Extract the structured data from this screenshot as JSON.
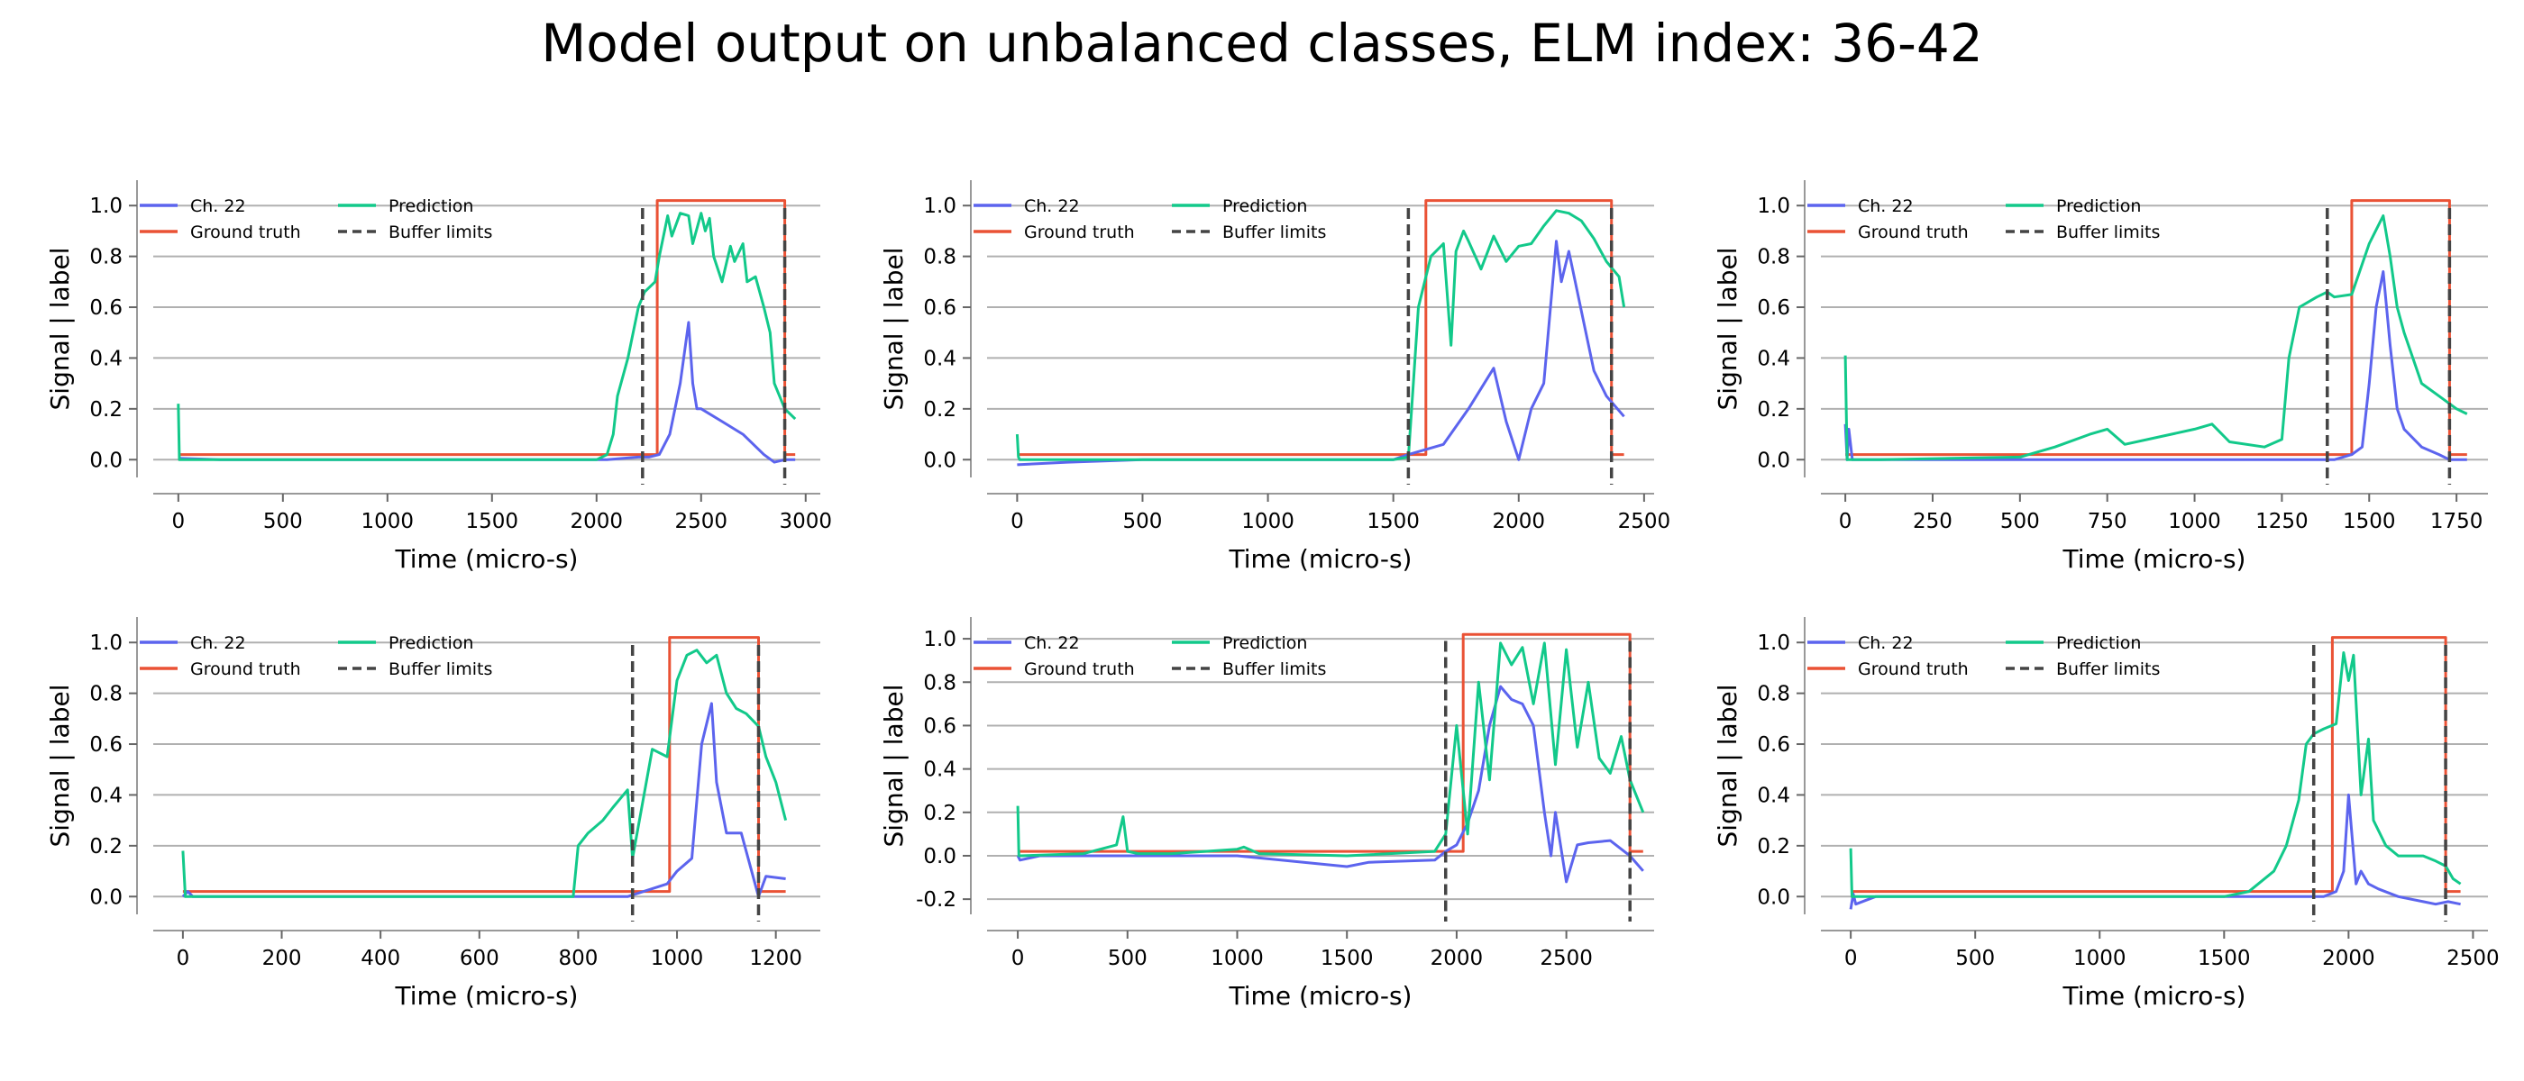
{
  "title": "Model output on unbalanced classes, ELM index: 36-42",
  "colors": {
    "channel": "#5c64ee",
    "ground_truth": "#ea5235",
    "prediction": "#12c98a",
    "buffer": "#444444",
    "grid": "#b0b0b0"
  },
  "legend": [
    "Ch. 22",
    "Ground truth",
    "Prediction",
    "Buffer limits"
  ],
  "chart_data": [
    {
      "type": "line",
      "xlabel": "Time (micro-s)",
      "ylabel": "Signal | label",
      "xlim": [
        -120,
        3070
      ],
      "ylim": [
        -0.07,
        1.1
      ],
      "xticks": [
        0,
        500,
        1000,
        1500,
        2000,
        2500,
        3000
      ],
      "yticks": [
        0.0,
        0.2,
        0.4,
        0.6,
        0.8,
        1.0
      ],
      "buffer_limits": [
        2220,
        2900
      ],
      "series": [
        {
          "name": "Ch. 22",
          "x": [
            0,
            200,
            600,
            1000,
            1400,
            1800,
            2050,
            2200,
            2250,
            2300,
            2350,
            2400,
            2440,
            2460,
            2480,
            2500,
            2600,
            2700,
            2800,
            2850,
            2900,
            2950
          ],
          "y": [
            0.005,
            0.0,
            0.0,
            0.0,
            0.0,
            0.0,
            0.0,
            0.01,
            0.01,
            0.02,
            0.1,
            0.3,
            0.54,
            0.3,
            0.2,
            0.2,
            0.15,
            0.1,
            0.02,
            -0.01,
            0.0,
            0.0
          ]
        },
        {
          "name": "Ground truth",
          "x": [
            0,
            2290,
            2290,
            2900,
            2900,
            2950
          ],
          "y": [
            0.02,
            0.02,
            1.02,
            1.02,
            0.02,
            0.02
          ]
        },
        {
          "name": "Prediction",
          "x": [
            0,
            5,
            10,
            500,
            1000,
            1500,
            2000,
            2050,
            2080,
            2100,
            2150,
            2200,
            2230,
            2280,
            2300,
            2340,
            2360,
            2400,
            2440,
            2460,
            2500,
            2520,
            2540,
            2560,
            2600,
            2640,
            2660,
            2700,
            2720,
            2760,
            2800,
            2830,
            2850,
            2900,
            2950
          ],
          "y": [
            0.22,
            0.0,
            0.0,
            0.0,
            0.0,
            0.0,
            0.0,
            0.02,
            0.1,
            0.25,
            0.4,
            0.6,
            0.66,
            0.7,
            0.8,
            0.96,
            0.88,
            0.97,
            0.96,
            0.85,
            0.97,
            0.9,
            0.95,
            0.8,
            0.7,
            0.84,
            0.78,
            0.85,
            0.7,
            0.72,
            0.6,
            0.5,
            0.3,
            0.2,
            0.16
          ]
        }
      ]
    },
    {
      "type": "line",
      "xlabel": "Time (micro-s)",
      "ylabel": "Signal | label",
      "xlim": [
        -120,
        2540
      ],
      "ylim": [
        -0.07,
        1.1
      ],
      "xticks": [
        0,
        500,
        1000,
        1500,
        2000,
        2500
      ],
      "yticks": [
        0.0,
        0.2,
        0.4,
        0.6,
        0.8,
        1.0
      ],
      "buffer_limits": [
        1560,
        2370
      ],
      "series": [
        {
          "name": "Ch. 22",
          "x": [
            0,
            200,
            500,
            1000,
            1500,
            1560,
            1700,
            1800,
            1900,
            1950,
            2000,
            2050,
            2100,
            2150,
            2170,
            2200,
            2300,
            2350,
            2420
          ],
          "y": [
            -0.02,
            -0.01,
            0.0,
            0.0,
            0.0,
            0.02,
            0.06,
            0.2,
            0.36,
            0.15,
            0.0,
            0.2,
            0.3,
            0.86,
            0.7,
            0.82,
            0.35,
            0.25,
            0.17
          ]
        },
        {
          "name": "Ground truth",
          "x": [
            0,
            1630,
            1630,
            2370,
            2370,
            2420
          ],
          "y": [
            0.02,
            0.02,
            1.02,
            1.02,
            0.02,
            0.02
          ]
        },
        {
          "name": "Prediction",
          "x": [
            0,
            5,
            10,
            500,
            1000,
            1500,
            1560,
            1580,
            1600,
            1650,
            1700,
            1730,
            1750,
            1780,
            1800,
            1850,
            1900,
            1950,
            2000,
            2050,
            2100,
            2150,
            2200,
            2250,
            2300,
            2350,
            2400,
            2420
          ],
          "y": [
            0.1,
            0.01,
            0.0,
            0.0,
            0.0,
            0.0,
            0.01,
            0.3,
            0.6,
            0.8,
            0.85,
            0.45,
            0.82,
            0.9,
            0.86,
            0.75,
            0.88,
            0.78,
            0.84,
            0.85,
            0.92,
            0.98,
            0.97,
            0.94,
            0.87,
            0.78,
            0.72,
            0.6
          ]
        }
      ]
    },
    {
      "type": "line",
      "xlabel": "Time (micro-s)",
      "ylabel": "Signal | label",
      "xlim": [
        -70,
        1840
      ],
      "ylim": [
        -0.07,
        1.1
      ],
      "xticks": [
        0,
        250,
        500,
        750,
        1000,
        1250,
        1500,
        1750
      ],
      "yticks": [
        0.0,
        0.2,
        0.4,
        0.6,
        0.8,
        1.0
      ],
      "buffer_limits": [
        1380,
        1730
      ],
      "series": [
        {
          "name": "Ch. 22",
          "x": [
            0,
            5,
            10,
            20,
            100,
            500,
            1000,
            1400,
            1450,
            1480,
            1500,
            1520,
            1540,
            1560,
            1580,
            1600,
            1650,
            1700,
            1730,
            1780
          ],
          "y": [
            0.14,
            0.0,
            0.12,
            0.0,
            0.0,
            0.0,
            0.0,
            0.0,
            0.02,
            0.05,
            0.3,
            0.6,
            0.74,
            0.45,
            0.2,
            0.12,
            0.05,
            0.02,
            0.0,
            0.0
          ]
        },
        {
          "name": "Ground truth",
          "x": [
            0,
            1450,
            1450,
            1730,
            1730,
            1780
          ],
          "y": [
            0.02,
            0.02,
            1.02,
            1.02,
            0.02,
            0.02
          ]
        },
        {
          "name": "Prediction",
          "x": [
            0,
            5,
            10,
            100,
            500,
            600,
            700,
            750,
            800,
            900,
            1000,
            1050,
            1100,
            1200,
            1250,
            1270,
            1300,
            1350,
            1380,
            1400,
            1450,
            1500,
            1540,
            1560,
            1580,
            1600,
            1650,
            1700,
            1730,
            1750,
            1780
          ],
          "y": [
            0.41,
            0.0,
            0.0,
            0.0,
            0.01,
            0.05,
            0.1,
            0.12,
            0.06,
            0.09,
            0.12,
            0.14,
            0.07,
            0.05,
            0.08,
            0.4,
            0.6,
            0.64,
            0.66,
            0.64,
            0.65,
            0.85,
            0.96,
            0.8,
            0.6,
            0.5,
            0.3,
            0.25,
            0.22,
            0.2,
            0.18
          ]
        }
      ]
    },
    {
      "type": "line",
      "xlabel": "Time (micro-s)",
      "ylabel": "Signal | label",
      "xlim": [
        -60,
        1290
      ],
      "ylim": [
        -0.07,
        1.1
      ],
      "xticks": [
        0,
        200,
        400,
        600,
        800,
        1000,
        1200
      ],
      "yticks": [
        0.0,
        0.2,
        0.4,
        0.6,
        0.8,
        1.0
      ],
      "buffer_limits": [
        910,
        1165
      ],
      "series": [
        {
          "name": "Ch. 22",
          "x": [
            0,
            10,
            20,
            100,
            400,
            800,
            900,
            980,
            1000,
            1030,
            1050,
            1070,
            1080,
            1100,
            1130,
            1165,
            1180,
            1220
          ],
          "y": [
            0.0,
            0.02,
            0.0,
            0.0,
            0.0,
            0.0,
            0.0,
            0.05,
            0.1,
            0.15,
            0.6,
            0.76,
            0.45,
            0.25,
            0.25,
            0.0,
            0.08,
            0.07
          ]
        },
        {
          "name": "Ground truth",
          "x": [
            0,
            985,
            985,
            1165,
            1165,
            1220
          ],
          "y": [
            0.02,
            0.02,
            1.02,
            1.02,
            0.02,
            0.02
          ]
        },
        {
          "name": "Prediction",
          "x": [
            0,
            5,
            10,
            100,
            400,
            790,
            800,
            820,
            850,
            870,
            900,
            910,
            950,
            980,
            1000,
            1020,
            1040,
            1060,
            1080,
            1100,
            1120,
            1140,
            1165,
            1180,
            1200,
            1220
          ],
          "y": [
            0.18,
            0.0,
            0.0,
            0.0,
            0.0,
            0.0,
            0.2,
            0.25,
            0.3,
            0.35,
            0.42,
            0.15,
            0.58,
            0.55,
            0.85,
            0.95,
            0.97,
            0.92,
            0.95,
            0.8,
            0.74,
            0.72,
            0.67,
            0.55,
            0.45,
            0.3
          ]
        }
      ]
    },
    {
      "type": "line",
      "xlabel": "Time (micro-s)",
      "ylabel": "Signal | label",
      "xlim": [
        -140,
        2900
      ],
      "ylim": [
        -0.27,
        1.1
      ],
      "xticks": [
        0,
        500,
        1000,
        1500,
        2000,
        2500
      ],
      "yticks": [
        -0.2,
        0.0,
        0.2,
        0.4,
        0.6,
        0.8,
        1.0
      ],
      "buffer_limits": [
        1950,
        2790
      ],
      "series": [
        {
          "name": "Ch. 22",
          "x": [
            0,
            10,
            100,
            500,
            1000,
            1500,
            1600,
            1900,
            1950,
            2000,
            2050,
            2100,
            2150,
            2200,
            2250,
            2300,
            2350,
            2400,
            2430,
            2450,
            2500,
            2550,
            2600,
            2700,
            2790,
            2850
          ],
          "y": [
            0.0,
            -0.02,
            0.0,
            0.0,
            0.0,
            -0.05,
            -0.03,
            -0.02,
            0.02,
            0.05,
            0.15,
            0.3,
            0.6,
            0.78,
            0.72,
            0.7,
            0.6,
            0.2,
            0.0,
            0.2,
            -0.12,
            0.05,
            0.06,
            0.07,
            0.0,
            -0.07
          ]
        },
        {
          "name": "Ground truth",
          "x": [
            0,
            2030,
            2030,
            2790,
            2790,
            2850
          ],
          "y": [
            0.02,
            0.02,
            1.02,
            1.02,
            0.02,
            0.02
          ]
        },
        {
          "name": "Prediction",
          "x": [
            0,
            5,
            10,
            300,
            450,
            480,
            500,
            550,
            700,
            1000,
            1030,
            1100,
            1500,
            1900,
            1950,
            2000,
            2050,
            2100,
            2150,
            2200,
            2250,
            2300,
            2350,
            2400,
            2450,
            2500,
            2550,
            2600,
            2650,
            2700,
            2750,
            2790,
            2850
          ],
          "y": [
            0.23,
            0.0,
            0.0,
            0.01,
            0.05,
            0.18,
            0.02,
            0.01,
            0.01,
            0.03,
            0.04,
            0.01,
            0.0,
            0.02,
            0.1,
            0.6,
            0.1,
            0.8,
            0.35,
            0.98,
            0.88,
            0.96,
            0.7,
            0.98,
            0.42,
            0.95,
            0.5,
            0.8,
            0.45,
            0.38,
            0.55,
            0.35,
            0.2
          ]
        }
      ]
    },
    {
      "type": "line",
      "xlabel": "Time (micro-s)",
      "ylabel": "Signal | label",
      "xlim": [
        -120,
        2560
      ],
      "ylim": [
        -0.07,
        1.1
      ],
      "xticks": [
        0,
        500,
        1000,
        1500,
        2000,
        2500
      ],
      "yticks": [
        0.0,
        0.2,
        0.4,
        0.6,
        0.8,
        1.0
      ],
      "buffer_limits": [
        1860,
        2390
      ],
      "series": [
        {
          "name": "Ch. 22",
          "x": [
            0,
            10,
            20,
            100,
            500,
            1000,
            1500,
            1900,
            1950,
            1980,
            2000,
            2030,
            2050,
            2080,
            2120,
            2200,
            2300,
            2350,
            2400,
            2450
          ],
          "y": [
            -0.05,
            0.01,
            -0.03,
            0.0,
            0.0,
            0.0,
            0.0,
            0.0,
            0.02,
            0.1,
            0.4,
            0.05,
            0.1,
            0.05,
            0.03,
            0.0,
            -0.02,
            -0.03,
            -0.02,
            -0.03
          ]
        },
        {
          "name": "Ground truth",
          "x": [
            0,
            1935,
            1935,
            2390,
            2390,
            2450
          ],
          "y": [
            0.02,
            0.02,
            1.02,
            1.02,
            0.02,
            0.02
          ]
        },
        {
          "name": "Prediction",
          "x": [
            0,
            5,
            10,
            100,
            500,
            1000,
            1500,
            1600,
            1700,
            1750,
            1800,
            1830,
            1860,
            1900,
            1950,
            1980,
            2000,
            2020,
            2050,
            2080,
            2100,
            2150,
            2200,
            2300,
            2350,
            2390,
            2420,
            2450
          ],
          "y": [
            0.19,
            0.0,
            0.0,
            0.0,
            0.0,
            0.0,
            0.0,
            0.02,
            0.1,
            0.2,
            0.38,
            0.6,
            0.64,
            0.66,
            0.68,
            0.96,
            0.85,
            0.95,
            0.4,
            0.62,
            0.3,
            0.2,
            0.16,
            0.16,
            0.14,
            0.12,
            0.07,
            0.05
          ]
        }
      ]
    }
  ]
}
